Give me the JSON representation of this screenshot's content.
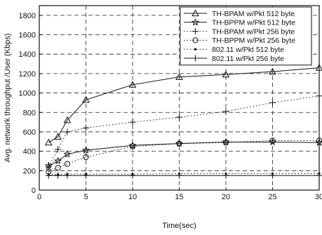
{
  "chart_data": {
    "type": "line",
    "title": "",
    "xlabel": "Time(sec)",
    "ylabel": "Avg. network throughput /User (Kbps)",
    "xlim": [
      0,
      30
    ],
    "ylim": [
      0,
      1900
    ],
    "xticks": [
      0,
      5,
      10,
      15,
      20,
      25,
      30
    ],
    "yticks": [
      0,
      200,
      400,
      600,
      800,
      1000,
      1200,
      1400,
      1600,
      1800
    ],
    "grid": "dashed",
    "legend_position": "top-right",
    "series": [
      {
        "name": "TH-BPAM w/Pkt 512 byte",
        "marker": "triangle",
        "line": "solid",
        "x": [
          1,
          2,
          3,
          5,
          10,
          15,
          20,
          25,
          30
        ],
        "values": [
          490,
          550,
          720,
          930,
          1085,
          1165,
          1190,
          1220,
          1260
        ]
      },
      {
        "name": "TH-BPPM w/Pkt 512 byte",
        "marker": "star",
        "line": "solid",
        "x": [
          1,
          2,
          3,
          5,
          10,
          15,
          20,
          25,
          30
        ],
        "values": [
          250,
          300,
          370,
          410,
          460,
          480,
          495,
          495,
          490
        ]
      },
      {
        "name": "TH-BPAM w/Pkt 256 byte",
        "marker": "plus",
        "line": "dotted",
        "x": [
          1,
          2,
          3,
          5,
          10,
          15,
          20,
          25,
          30
        ],
        "values": [
          240,
          420,
          600,
          640,
          700,
          750,
          810,
          900,
          970
        ]
      },
      {
        "name": "TH-BPPM w/Pkt 256 byte",
        "marker": "circle",
        "line": "dotted",
        "x": [
          1,
          2,
          3,
          5,
          10,
          15,
          20,
          25,
          30
        ],
        "values": [
          190,
          230,
          270,
          340,
          450,
          480,
          490,
          510,
          510
        ]
      },
      {
        "name": "802.11 w/Pkt 512 byte",
        "marker": "dot",
        "line": "dotted",
        "x": [
          1,
          2,
          3,
          5,
          10,
          15,
          20,
          25,
          30
        ],
        "values": [
          160,
          160,
          165,
          165,
          165,
          170,
          170,
          170,
          170
        ]
      },
      {
        "name": "802.11 w/Pkt 256 byte",
        "marker": "plus",
        "line": "solid",
        "x": [
          1,
          2,
          3,
          5,
          10,
          15,
          20,
          25,
          30
        ],
        "values": [
          150,
          150,
          150,
          150,
          150,
          150,
          150,
          150,
          150
        ]
      }
    ]
  }
}
